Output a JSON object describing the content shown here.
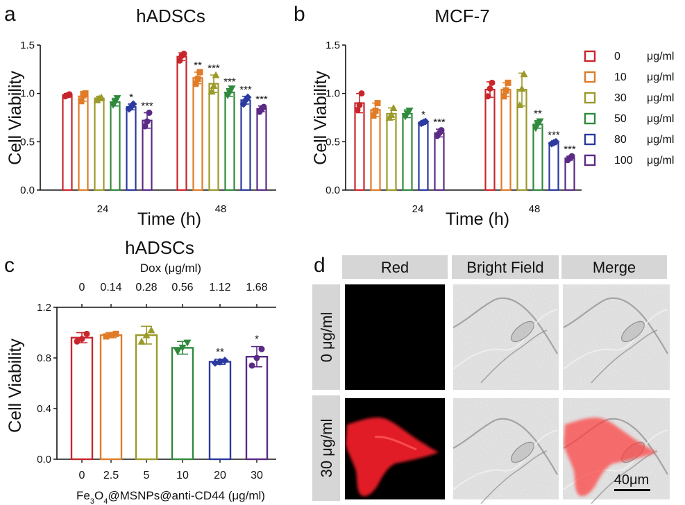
{
  "colors": [
    "#c9252c",
    "#e07b27",
    "#9b9a2a",
    "#2f8a3c",
    "#2a3aa0",
    "#5a2a85"
  ],
  "legend": {
    "entries": [
      "0",
      "10",
      "30",
      "50",
      "80",
      "100"
    ],
    "unit": "μg/ml"
  },
  "chart_data": [
    {
      "id": "a",
      "type": "bar",
      "panel": "a",
      "title": "hADSCs",
      "xlabel": "Time (h)",
      "ylabel": "Cell Viability",
      "categories": [
        "24",
        "48"
      ],
      "yticks": [
        "0.0",
        "0.5",
        "1.0",
        "1.5"
      ],
      "ylim": [
        0,
        1.5
      ],
      "series": [
        {
          "values": [
            0.98,
            1.38
          ],
          "errors": [
            0.02,
            0.04
          ],
          "points": [
            [
              0.97,
              0.98,
              0.99
            ],
            [
              1.34,
              1.39,
              1.41
            ]
          ],
          "sig": [
            "",
            ""
          ]
        },
        {
          "values": [
            0.97,
            1.16
          ],
          "errors": [
            0.05,
            0.06
          ],
          "points": [
            [
              0.92,
              0.98,
              1.0
            ],
            [
              1.1,
              1.15,
              1.22
            ]
          ],
          "sig": [
            "",
            "**"
          ]
        },
        {
          "values": [
            0.95,
            1.1
          ],
          "errors": [
            0.02,
            0.09
          ],
          "points": [
            [
              0.93,
              0.95,
              0.96
            ],
            [
              1.02,
              1.08,
              1.19
            ]
          ],
          "sig": [
            "",
            "***"
          ]
        },
        {
          "values": [
            0.91,
            1.01
          ],
          "errors": [
            0.04,
            0.04
          ],
          "points": [
            [
              0.88,
              0.91,
              0.95
            ],
            [
              0.98,
              1.01,
              1.05
            ]
          ],
          "sig": [
            "",
            "***"
          ]
        },
        {
          "values": [
            0.86,
            0.93
          ],
          "errors": [
            0.03,
            0.04
          ],
          "points": [
            [
              0.84,
              0.86,
              0.89
            ],
            [
              0.89,
              0.93,
              0.96
            ]
          ],
          "sig": [
            "*",
            "***"
          ]
        },
        {
          "values": [
            0.72,
            0.84
          ],
          "errors": [
            0.08,
            0.03
          ],
          "points": [
            [
              0.66,
              0.71,
              0.8
            ],
            [
              0.81,
              0.84,
              0.86
            ]
          ],
          "sig": [
            "***",
            "***"
          ]
        }
      ]
    },
    {
      "id": "b",
      "type": "bar",
      "panel": "b",
      "title": "MCF-7",
      "xlabel": "Time (h)",
      "ylabel": "Cell Viability",
      "categories": [
        "24",
        "48"
      ],
      "yticks": [
        "0.0",
        "0.5",
        "1.0",
        "1.5"
      ],
      "ylim": [
        0,
        1.5
      ],
      "series": [
        {
          "values": [
            0.9,
            1.04
          ],
          "errors": [
            0.1,
            0.08
          ],
          "points": [
            [
              0.83,
              0.88,
              1.0
            ],
            [
              0.97,
              1.05,
              1.11
            ]
          ],
          "sig": [
            "",
            ""
          ]
        },
        {
          "values": [
            0.83,
            1.04
          ],
          "errors": [
            0.07,
            0.07
          ],
          "points": [
            [
              0.77,
              0.82,
              0.9
            ],
            [
              0.97,
              1.03,
              1.11
            ]
          ],
          "sig": [
            "",
            ""
          ]
        },
        {
          "values": [
            0.79,
            1.04
          ],
          "errors": [
            0.06,
            0.17
          ],
          "points": [
            [
              0.75,
              0.78,
              0.85
            ],
            [
              0.88,
              1.05,
              1.2
            ]
          ],
          "sig": [
            "",
            ""
          ]
        },
        {
          "values": [
            0.79,
            0.68
          ],
          "errors": [
            0.04,
            0.04
          ],
          "points": [
            [
              0.76,
              0.79,
              0.82
            ],
            [
              0.64,
              0.68,
              0.71
            ]
          ],
          "sig": [
            "",
            "**"
          ]
        },
        {
          "values": [
            0.7,
            0.49
          ],
          "errors": [
            0.01,
            0.01
          ],
          "points": [
            [
              0.69,
              0.7,
              0.71
            ],
            [
              0.48,
              0.49,
              0.5
            ]
          ],
          "sig": [
            "*",
            "***"
          ]
        },
        {
          "values": [
            0.59,
            0.33
          ],
          "errors": [
            0.04,
            0.02
          ],
          "points": [
            [
              0.56,
              0.59,
              0.62
            ],
            [
              0.31,
              0.33,
              0.35
            ]
          ],
          "sig": [
            "***",
            "***"
          ]
        }
      ]
    },
    {
      "id": "c",
      "type": "bar",
      "panel": "c",
      "title": "hADSCs",
      "xlabel_main": "Fe",
      "xlabel_sub1": "3",
      "xlabel_mid": "O",
      "xlabel_sub2": "4",
      "xlabel_tail": "@MSNPs@anti-CD44 (μg/ml)",
      "x2label": "Dox  (μg/ml)",
      "ylabel": "Cell Viability",
      "categories": [
        "0",
        "2.5",
        "5",
        "10",
        "20",
        "30"
      ],
      "top_categories": [
        "0",
        "0.14",
        "0.28",
        "0.56",
        "1.12",
        "1.68"
      ],
      "yticks": [
        "0.0",
        "0.4",
        "0.8",
        "1.2"
      ],
      "ylim": [
        0,
        1.2
      ],
      "values": [
        0.96,
        0.98,
        0.98,
        0.88,
        0.77,
        0.81
      ],
      "errors": [
        0.04,
        0.02,
        0.07,
        0.05,
        0.02,
        0.08
      ],
      "points": [
        [
          0.93,
          0.95,
          0.99
        ],
        [
          0.97,
          0.98,
          0.99
        ],
        [
          0.93,
          0.98,
          1.02
        ],
        [
          0.85,
          0.88,
          0.92
        ],
        [
          0.76,
          0.77,
          0.78
        ],
        [
          0.74,
          0.8,
          0.87
        ]
      ],
      "sig": [
        "",
        "",
        "",
        "",
        "**",
        "*"
      ]
    }
  ],
  "images": {
    "panel": "d",
    "headers": [
      "Red",
      "Bright Field",
      "Merge"
    ],
    "rows": [
      "0 μg/ml",
      "30 μg/ml"
    ],
    "scale_bar": "40μm"
  }
}
